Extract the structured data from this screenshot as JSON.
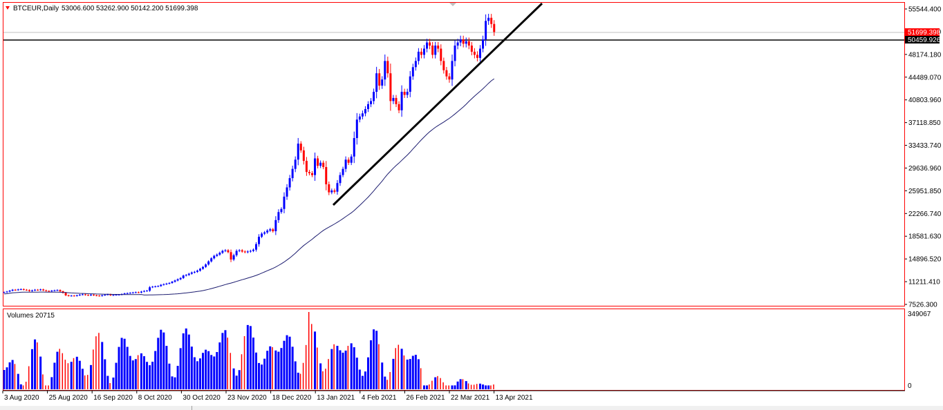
{
  "header": {
    "symbol": "BTCEUR,Daily",
    "ohlc": "53006.600 53262.900 50142.200 51699.398"
  },
  "volumes_label": "Volumes 20715",
  "price_axis": {
    "ticks": [
      "55544.400",
      "51859.290",
      "48174.180",
      "44489.070",
      "40803.960",
      "37118.850",
      "33433.740",
      "29636.960",
      "25951.850",
      "22266.740",
      "18581.630",
      "14896.520",
      "11211.410",
      "7526.300"
    ],
    "current_price_label": "51699.398",
    "hline_label": "50459.926"
  },
  "volume_axis": {
    "ticks": [
      "349067",
      "0"
    ]
  },
  "time_axis": {
    "labels": [
      "3 Aug 2020",
      "25 Aug 2020",
      "16 Sep 2020",
      "8 Oct 2020",
      "30 Oct 2020",
      "23 Nov 2020",
      "18 Dec 2020",
      "13 Jan 2021",
      "4 Feb 2021",
      "26 Feb 2021",
      "22 Mar 2021",
      "13 Apr 2021"
    ]
  },
  "colors": {
    "bull": "#0000ff",
    "bear": "#ff0000",
    "ma": "#1a1a6e",
    "trend": "#000000",
    "frame": "#ff0000"
  },
  "chart_data": {
    "type": "candlestick",
    "instrument": "BTCEUR",
    "timeframe": "Daily",
    "last_ohlc": {
      "open": 53006.6,
      "high": 53262.9,
      "low": 50142.2,
      "close": 51699.398
    },
    "horizontal_line": 50459.926,
    "ylim": [
      7526.3,
      55544.4
    ],
    "volume_ylim": [
      0,
      349067
    ],
    "closes": [
      9500,
      9600,
      9750,
      9900,
      9850,
      9950,
      10000,
      9900,
      9850,
      9700,
      9800,
      9900,
      9850,
      9950,
      9800,
      9700,
      9650,
      9750,
      9800,
      9850,
      9650,
      9400,
      9000,
      8900,
      8950,
      8900,
      9000,
      9100,
      9150,
      9050,
      9000,
      9100,
      9000,
      8950,
      8900,
      9000,
      9100,
      9150,
      9000,
      9050,
      9100,
      9100,
      9200,
      9300,
      9350,
      9400,
      9450,
      9500,
      9450,
      9600,
      9700,
      9750,
      10300,
      10400,
      10450,
      10500,
      10700,
      10800,
      10900,
      11000,
      11200,
      11400,
      11600,
      11800,
      12200,
      12300,
      12500,
      12700,
      12800,
      13000,
      13300,
      13600,
      14000,
      14500,
      15000,
      15400,
      15600,
      15900,
      16200,
      16300,
      16000,
      14800,
      15500,
      16200,
      16300,
      16100,
      16000,
      16100,
      16200,
      16400,
      17300,
      18500,
      19000,
      19200,
      19500,
      19700,
      19400,
      21200,
      22500,
      23000,
      25000,
      26500,
      28000,
      29500,
      31000,
      33600,
      32500,
      30800,
      29000,
      28800,
      28500,
      31200,
      30000,
      30500,
      29800,
      27000,
      25700,
      26000,
      25800,
      27200,
      28500,
      29500,
      31000,
      30500,
      31500,
      34500,
      37500,
      38000,
      38500,
      39200,
      40000,
      40500,
      42000,
      45000,
      43000,
      44000,
      47000,
      45000,
      40500,
      41000,
      40000,
      39000,
      42000,
      41500,
      42000,
      44500,
      46000,
      47000,
      48500,
      48000,
      49000,
      50000,
      49500,
      48000,
      49500,
      49000,
      47000,
      45500,
      44500,
      44000,
      47000,
      49500,
      50000,
      50500,
      49800,
      50200,
      49500,
      48500,
      48000,
      47500,
      49000,
      50500,
      53500,
      54000,
      53000,
      51699
    ]
  }
}
